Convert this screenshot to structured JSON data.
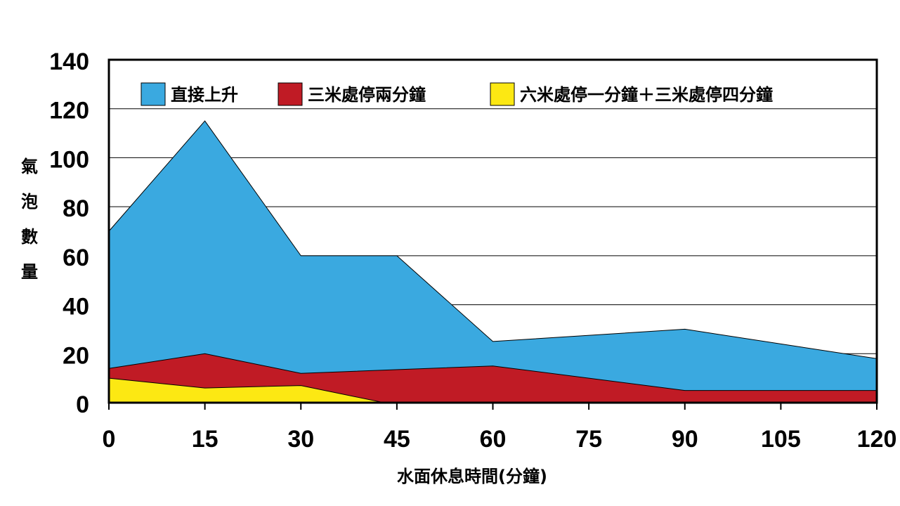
{
  "chart_data": {
    "type": "area",
    "title": "",
    "xlabel": "水面休息時間(分鐘)",
    "ylabel": "氣泡數量",
    "x": [
      0,
      15,
      30,
      45,
      60,
      75,
      90,
      105,
      120
    ],
    "xlim": [
      0,
      120
    ],
    "ylim": [
      0,
      140
    ],
    "yticks": [
      0,
      20,
      40,
      60,
      80,
      100,
      120,
      140
    ],
    "grid": true,
    "legend_position": "top",
    "series": [
      {
        "name": "直接上升",
        "color": "#3aa9e0",
        "points": [
          [
            0,
            70
          ],
          [
            15,
            115
          ],
          [
            30,
            60
          ],
          [
            45,
            60
          ],
          [
            60,
            25
          ],
          [
            90,
            30
          ],
          [
            120,
            18
          ]
        ]
      },
      {
        "name": "三米處停兩分鐘",
        "color": "#c01b25",
        "points": [
          [
            0,
            14
          ],
          [
            15,
            20
          ],
          [
            30,
            12
          ],
          [
            60,
            15
          ],
          [
            90,
            5
          ],
          [
            120,
            5
          ]
        ]
      },
      {
        "name": "六米處停一分鐘＋三米處停四分鐘",
        "color": "#fce813",
        "points": [
          [
            0,
            10
          ],
          [
            15,
            6
          ],
          [
            30,
            7
          ],
          [
            43,
            0
          ],
          [
            120,
            0
          ]
        ]
      }
    ]
  }
}
